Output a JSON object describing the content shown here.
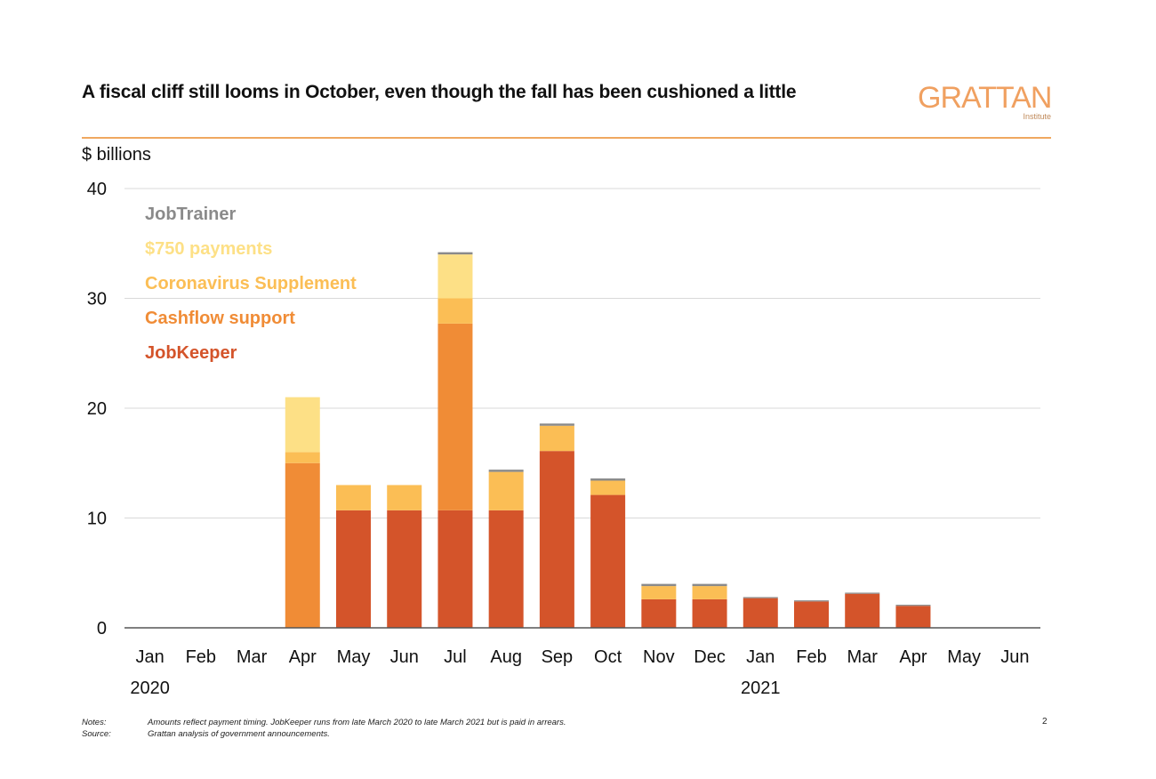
{
  "header": {
    "title": "A fiscal cliff still looms in October, even though the fall has been cushioned a little",
    "logo_main": "GRATTAN",
    "logo_sub": "Institute"
  },
  "footer": {
    "notes_label": "Notes:",
    "notes_text": "Amounts reflect payment timing. JobKeeper runs from late March 2020 to late March 2021 but is paid in arrears.",
    "source_label": "Source:",
    "source_text": "Grattan analysis of government announcements.",
    "page_number": "2"
  },
  "colors": {
    "JobKeeper": "#d4542a",
    "Cashflow support": "#f08c36",
    "Coronavirus Supplement": "#fbbe55",
    "$750 payments": "#fde086",
    "JobTrainer": "#8a8a8a"
  },
  "chart_data": {
    "type": "bar",
    "stacked": true,
    "ylabel": "$ billions",
    "ylim": [
      0,
      40
    ],
    "yticks": [
      0,
      10,
      20,
      30,
      40
    ],
    "grid": true,
    "legend_placement": "top-left",
    "categories": [
      "Jan",
      "Feb",
      "Mar",
      "Apr",
      "May",
      "Jun",
      "Jul",
      "Aug",
      "Sep",
      "Oct",
      "Nov",
      "Dec",
      "Jan",
      "Feb",
      "Mar",
      "Apr",
      "May",
      "Jun"
    ],
    "year_labels": [
      {
        "index": 0,
        "label": "2020"
      },
      {
        "index": 12,
        "label": "2021"
      }
    ],
    "series": [
      {
        "name": "JobKeeper",
        "values": [
          0,
          0,
          0,
          0,
          10.7,
          10.7,
          10.7,
          10.7,
          16.1,
          12.1,
          2.6,
          2.6,
          2.7,
          2.4,
          3.1,
          2.0,
          0,
          0
        ]
      },
      {
        "name": "Cashflow support",
        "values": [
          0,
          0,
          0,
          15.0,
          0,
          0,
          17.0,
          0,
          0,
          0,
          0,
          0,
          0,
          0,
          0,
          0,
          0,
          0
        ]
      },
      {
        "name": "Coronavirus Supplement",
        "values": [
          0,
          0,
          0,
          1.0,
          2.3,
          2.3,
          2.3,
          3.5,
          2.3,
          1.3,
          1.2,
          1.2,
          0,
          0,
          0,
          0,
          0,
          0
        ]
      },
      {
        "name": "$750 payments",
        "values": [
          0,
          0,
          0,
          5.0,
          0,
          0,
          4.0,
          0,
          0,
          0,
          0,
          0,
          0,
          0,
          0,
          0,
          0,
          0
        ]
      },
      {
        "name": "JobTrainer",
        "values": [
          0,
          0,
          0,
          0,
          0,
          0,
          0.2,
          0.2,
          0.2,
          0.2,
          0.2,
          0.2,
          0.1,
          0.1,
          0.1,
          0.1,
          0,
          0
        ]
      }
    ]
  }
}
